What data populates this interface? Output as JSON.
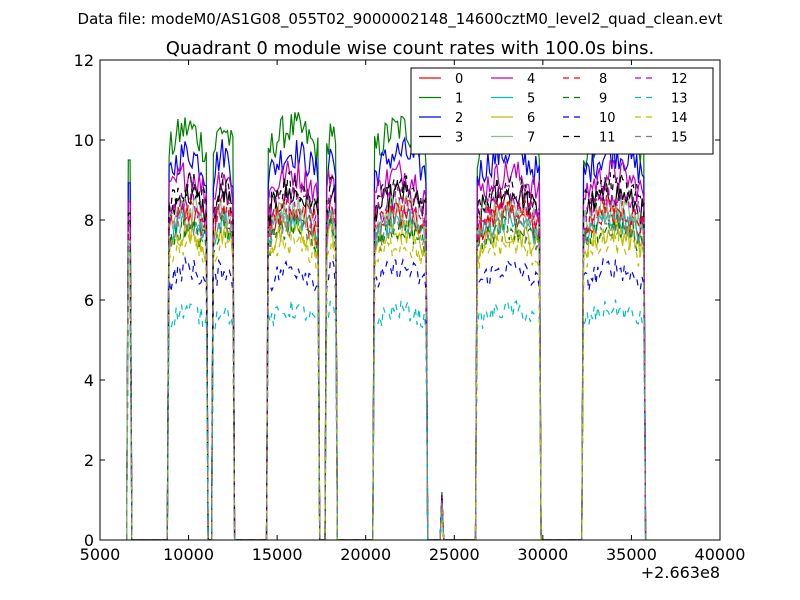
{
  "figure": {
    "suptitle": "Data file: modeM0/AS1G08_055T02_9000002148_14600cztM0_level2_quad_clean.evt"
  },
  "chart_data": {
    "type": "line",
    "title": "Quadrant 0 module wise count rates with 100.0s bins.",
    "xlabel": "",
    "ylabel": "",
    "xlim": [
      5000,
      40000
    ],
    "ylim": [
      0,
      12
    ],
    "x_offset_label": "+2.663e8",
    "xticks": [
      "5000",
      "10000",
      "15000",
      "20000",
      "25000",
      "30000",
      "35000",
      "40000"
    ],
    "yticks": [
      "0",
      "2",
      "4",
      "6",
      "8",
      "10",
      "12"
    ],
    "grid": false,
    "legend_placement": "top-right",
    "legend_columns": 4,
    "bin_seconds": 100,
    "good_time_intervals": [
      [
        6600,
        6700
      ],
      [
        8900,
        11000
      ],
      [
        11400,
        12500
      ],
      [
        14500,
        17300
      ],
      [
        17800,
        18300
      ],
      [
        20500,
        23400
      ],
      [
        26300,
        29800
      ],
      [
        32300,
        35700
      ]
    ],
    "isolated_points": [
      {
        "x": 24300,
        "frac": 0.12
      }
    ],
    "series": [
      {
        "name": "0",
        "color": "#ff0000",
        "dash": "solid",
        "mean": 7.9
      },
      {
        "name": "1",
        "color": "#008000",
        "dash": "solid",
        "mean": 10.0
      },
      {
        "name": "2",
        "color": "#0000ff",
        "dash": "solid",
        "mean": 9.4
      },
      {
        "name": "3",
        "color": "#000000",
        "dash": "solid",
        "mean": 8.4
      },
      {
        "name": "4",
        "color": "#bf00bf",
        "dash": "solid",
        "mean": 8.9
      },
      {
        "name": "5",
        "color": "#00bfbf",
        "dash": "solid",
        "mean": 7.8
      },
      {
        "name": "6",
        "color": "#bfbf00",
        "dash": "solid",
        "mean": 7.5
      },
      {
        "name": "7",
        "color": "#8fbc8f",
        "dash": "solid",
        "mean": 8.1
      },
      {
        "name": "8",
        "color": "#ff0000",
        "dash": "dashed",
        "mean": 8.1
      },
      {
        "name": "9",
        "color": "#008000",
        "dash": "dashed",
        "mean": 7.6
      },
      {
        "name": "10",
        "color": "#0000ff",
        "dash": "dashed",
        "mean": 6.6
      },
      {
        "name": "11",
        "color": "#000000",
        "dash": "dashed",
        "mean": 8.6
      },
      {
        "name": "12",
        "color": "#bf00bf",
        "dash": "dashed",
        "mean": 8.3
      },
      {
        "name": "13",
        "color": "#00bfbf",
        "dash": "dashed",
        "mean": 5.6
      },
      {
        "name": "14",
        "color": "#bfbf00",
        "dash": "dashed",
        "mean": 7.2
      },
      {
        "name": "15",
        "color": "#808080",
        "dash": "dashed",
        "mean": 7.7
      }
    ]
  }
}
